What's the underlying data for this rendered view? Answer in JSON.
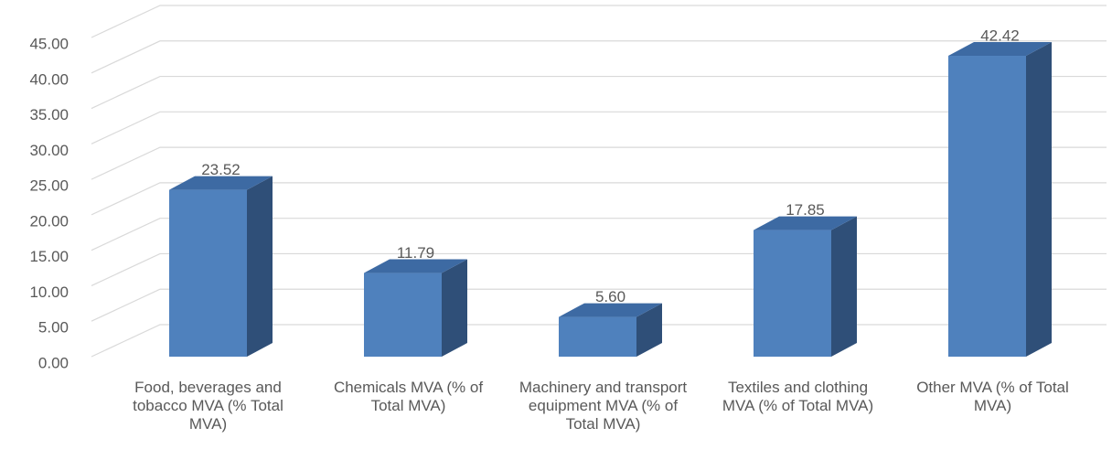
{
  "chart_data": {
    "type": "bar",
    "categories": [
      "Food, beverages and tobacco MVA (% Total MVA)",
      "Chemicals MVA (% of Total MVA)",
      "Machinery and transport equipment MVA (% of Total MVA)",
      "Textiles and clothing MVA (% of Total MVA)",
      "Other MVA (% of Total MVA)"
    ],
    "values": [
      23.52,
      11.79,
      5.6,
      17.85,
      42.42
    ],
    "value_labels": [
      "23.52",
      "11.79",
      "5.60",
      "17.85",
      "42.42"
    ],
    "color": "#4f81bd",
    "ylim": [
      0,
      45
    ],
    "yticks": [
      {
        "value": 0,
        "label": "0.00"
      },
      {
        "value": 5,
        "label": "5.00"
      },
      {
        "value": 10,
        "label": "10.00"
      },
      {
        "value": 15,
        "label": "15.00"
      },
      {
        "value": 20,
        "label": "20.00"
      },
      {
        "value": 25,
        "label": "25.00"
      },
      {
        "value": 30,
        "label": "30.00"
      },
      {
        "value": 35,
        "label": "35.00"
      },
      {
        "value": 40,
        "label": "40.00"
      },
      {
        "value": 45,
        "label": "45.00"
      }
    ],
    "grid": true
  }
}
